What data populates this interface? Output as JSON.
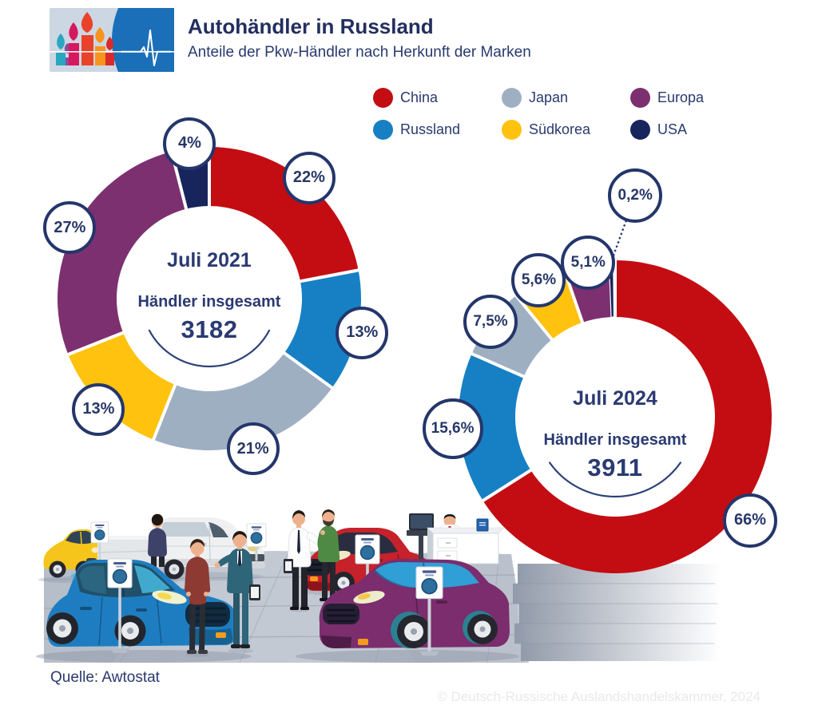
{
  "header": {
    "title": "Autohändler in Russland",
    "subtitle": "Anteile der Pkw-Händler nach Herkunft der Marken",
    "logo_icons": [
      "st-basils-cathedral-icon",
      "ecg-pulse-icon"
    ]
  },
  "legend": {
    "position": "top-right",
    "items": [
      {
        "label": "China",
        "color": "#c30d13"
      },
      {
        "label": "Japan",
        "color": "#9fafc2"
      },
      {
        "label": "Europa",
        "color": "#7c3070"
      },
      {
        "label": "Russland",
        "color": "#1780c4"
      },
      {
        "label": "Südkorea",
        "color": "#ffc20e"
      },
      {
        "label": "USA",
        "color": "#17255c"
      }
    ]
  },
  "chart_data": [
    {
      "type": "pie",
      "variant": "donut",
      "title": "Juli 2021",
      "center_label": "Händler insgesamt",
      "total": "3182",
      "unit": "%",
      "start_angle": "top",
      "direction": "clockwise",
      "slices": [
        {
          "label": "China",
          "value": 22,
          "display": "22%",
          "color": "#c30d13"
        },
        {
          "label": "Russland",
          "value": 13,
          "display": "13%",
          "color": "#1780c4"
        },
        {
          "label": "Japan",
          "value": 21,
          "display": "21%",
          "color": "#9fafc2"
        },
        {
          "label": "Südkorea",
          "value": 13,
          "display": "13%",
          "color": "#ffc20e"
        },
        {
          "label": "Europa",
          "value": 27,
          "display": "27%",
          "color": "#7c3070"
        },
        {
          "label": "USA",
          "value": 4,
          "display": "4%",
          "color": "#17255c"
        }
      ]
    },
    {
      "type": "pie",
      "variant": "donut",
      "title": "Juli 2024",
      "center_label": "Händler insgesamt",
      "total": "3911",
      "unit": "%",
      "start_angle": "top",
      "direction": "clockwise",
      "slices": [
        {
          "label": "China",
          "value": 66,
          "display": "66%",
          "color": "#c30d13"
        },
        {
          "label": "Russland",
          "value": 15.6,
          "display": "15,6%",
          "color": "#1780c4"
        },
        {
          "label": "Japan",
          "value": 7.5,
          "display": "7,5%",
          "color": "#9fafc2"
        },
        {
          "label": "Südkorea",
          "value": 5.6,
          "display": "5,6%",
          "color": "#ffc20e"
        },
        {
          "label": "Europa",
          "value": 5.1,
          "display": "5,1%",
          "color": "#7c3070"
        },
        {
          "label": "USA",
          "value": 0.2,
          "display": "0,2%",
          "color": "#17255c"
        }
      ]
    }
  ],
  "footer": {
    "source": "Quelle: Awtostat",
    "copyright": "© Deutsch-Russische Auslandshandelskammer, 2024"
  },
  "colors": {
    "text_navy": "#293a6e",
    "bubble_border": "#24366b",
    "logo_blue": "#1b6fb8",
    "logo_panel": "#ccd7e3",
    "copyright_gray": "#e9e9e9"
  },
  "icons": {
    "scene": "car-showroom-illustration",
    "price_sign": "price-sign-stand-icon"
  }
}
